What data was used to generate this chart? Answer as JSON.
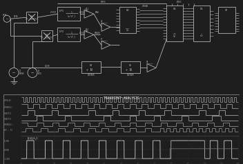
{
  "bg_color": "#1e1e1e",
  "cc": "#c0c0c0",
  "dark_bg": "#161616",
  "fig_width": 3.52,
  "fig_height": 2.4,
  "dpi": 100,
  "osc_title": "TRANSIENT ANALYSIS",
  "osc_cc": "#a0a0a0",
  "osc_border": "#707070",
  "ch_labels": [
    "V(VCLK)",
    "U(VBSEL)",
    "U(BIT1)",
    "U(BIT2)",
    "V(VBSEL)",
    "OUT...T2"
  ],
  "schematic_split": 0.56,
  "osc_split": 0.44
}
